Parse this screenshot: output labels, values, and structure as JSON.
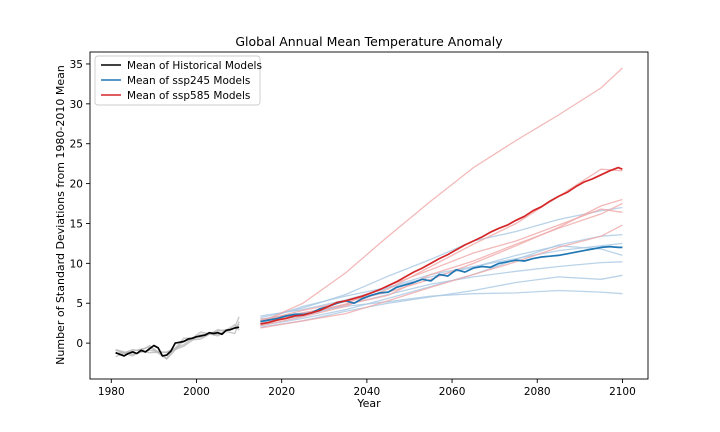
{
  "chart_data": {
    "type": "line",
    "title": "Global Annual Mean Temperature Anomaly",
    "xlabel": "Year",
    "ylabel": "Number of Standard Deviations from 1980-2010 Mean",
    "xlim": [
      1975,
      2106
    ],
    "ylim": [
      -4.5,
      36.5
    ],
    "xticks": [
      1980,
      2000,
      2020,
      2040,
      2060,
      2080,
      2100
    ],
    "yticks": [
      0,
      5,
      10,
      15,
      20,
      25,
      30,
      35
    ],
    "grid": false,
    "legend_position": "top-left",
    "colors": {
      "historical": "#000000",
      "historical_members": "#b8b8b8",
      "ssp245": "#1f77b4",
      "ssp245_members": "#a9c8e3",
      "ssp585": "#d62728",
      "ssp585_members": "#f0a8a8"
    },
    "series": [
      {
        "name": "Mean of Historical Models",
        "color": "#000000",
        "x": [
          1981,
          1982,
          1983,
          1984,
          1985,
          1986,
          1987,
          1988,
          1989,
          1990,
          1991,
          1992,
          1993,
          1994,
          1995,
          1996,
          1997,
          1998,
          1999,
          2000,
          2001,
          2002,
          2003,
          2004,
          2005,
          2006,
          2007,
          2008,
          2009,
          2010
        ],
        "y": [
          -1.2,
          -1.4,
          -1.6,
          -1.3,
          -1.1,
          -1.3,
          -0.9,
          -1.1,
          -0.7,
          -0.3,
          -0.6,
          -1.6,
          -1.5,
          -1.0,
          0.0,
          0.1,
          0.2,
          0.5,
          0.6,
          0.8,
          0.9,
          1.0,
          1.3,
          1.2,
          1.3,
          1.1,
          1.6,
          1.7,
          1.9,
          2.0
        ]
      },
      {
        "name": "Mean of ssp245 Models",
        "color": "#1f77b4",
        "x": [
          2015,
          2017,
          2019,
          2021,
          2023,
          2025,
          2027,
          2029,
          2031,
          2033,
          2035,
          2037,
          2039,
          2041,
          2043,
          2045,
          2047,
          2049,
          2051,
          2053,
          2055,
          2057,
          2059,
          2061,
          2063,
          2065,
          2067,
          2069,
          2071,
          2073,
          2075,
          2077,
          2079,
          2081,
          2083,
          2085,
          2087,
          2089,
          2091,
          2093,
          2095,
          2097,
          2099,
          2100
        ],
        "y": [
          2.7,
          2.9,
          3.1,
          3.4,
          3.6,
          3.6,
          3.8,
          4.3,
          4.6,
          5.0,
          5.3,
          5.0,
          5.6,
          6.0,
          6.3,
          6.4,
          7.0,
          7.3,
          7.6,
          8.0,
          7.8,
          8.6,
          8.4,
          9.2,
          8.9,
          9.4,
          9.6,
          9.5,
          10.0,
          10.2,
          10.4,
          10.3,
          10.6,
          10.8,
          10.9,
          11.0,
          11.2,
          11.4,
          11.6,
          11.8,
          12.0,
          12.1,
          12.0,
          12.0
        ]
      },
      {
        "name": "Mean of ssp585 Models",
        "color": "#d62728",
        "x": [
          2015,
          2017,
          2019,
          2021,
          2023,
          2025,
          2027,
          2029,
          2031,
          2033,
          2035,
          2037,
          2039,
          2041,
          2043,
          2045,
          2047,
          2049,
          2051,
          2053,
          2055,
          2057,
          2059,
          2061,
          2063,
          2065,
          2067,
          2069,
          2071,
          2073,
          2075,
          2077,
          2079,
          2081,
          2083,
          2085,
          2087,
          2089,
          2091,
          2093,
          2095,
          2097,
          2099,
          2100
        ],
        "y": [
          2.4,
          2.6,
          2.9,
          3.1,
          3.4,
          3.5,
          3.8,
          4.1,
          4.6,
          5.1,
          5.3,
          5.6,
          5.9,
          6.3,
          6.7,
          7.2,
          7.7,
          8.3,
          8.9,
          9.4,
          10.0,
          10.6,
          11.1,
          11.7,
          12.3,
          12.8,
          13.3,
          13.9,
          14.4,
          14.8,
          15.4,
          15.9,
          16.6,
          17.1,
          17.8,
          18.4,
          18.9,
          19.6,
          20.2,
          20.6,
          21.1,
          21.6,
          22.0,
          21.8
        ]
      }
    ],
    "ensemble_members": [
      {
        "scenario": "historical",
        "color": "#b8b8b8",
        "x": [
          1981,
          1985,
          1989,
          1993,
          1997,
          2001,
          2005,
          2009,
          2010
        ],
        "y": [
          -0.9,
          -1.6,
          -0.3,
          -1.9,
          0.6,
          0.7,
          1.5,
          1.9,
          2.4
        ]
      },
      {
        "scenario": "historical",
        "color": "#b8b8b8",
        "x": [
          1981,
          1985,
          1989,
          1993,
          1997,
          2001,
          2005,
          2009,
          2010
        ],
        "y": [
          -1.7,
          -0.8,
          -1.2,
          -1.1,
          -0.2,
          1.4,
          0.9,
          2.3,
          1.6
        ]
      },
      {
        "scenario": "historical",
        "color": "#b8b8b8",
        "x": [
          1981,
          1985,
          1989,
          1993,
          1997,
          2001,
          2005,
          2009,
          2010
        ],
        "y": [
          -1.3,
          -1.0,
          -0.5,
          -2.0,
          0.3,
          0.5,
          1.7,
          1.2,
          2.7
        ]
      },
      {
        "scenario": "historical",
        "color": "#b8b8b8",
        "x": [
          1981,
          1985,
          1989,
          1993,
          1997,
          2001,
          2005,
          2009,
          2010
        ],
        "y": [
          -0.8,
          -1.4,
          -0.9,
          -1.2,
          -0.4,
          1.1,
          1.1,
          2.0,
          3.3
        ]
      },
      {
        "scenario": "ssp245",
        "color": "#a9c8e3",
        "x": [
          2015,
          2025,
          2035,
          2045,
          2055,
          2065,
          2075,
          2085,
          2095,
          2100
        ],
        "y": [
          2.0,
          2.8,
          4.0,
          5.0,
          5.8,
          6.6,
          7.6,
          8.3,
          8.0,
          8.5
        ]
      },
      {
        "scenario": "ssp245",
        "color": "#a9c8e3",
        "x": [
          2015,
          2025,
          2035,
          2045,
          2055,
          2065,
          2075,
          2085,
          2095,
          2100
        ],
        "y": [
          3.0,
          3.8,
          4.6,
          5.2,
          5.9,
          6.2,
          6.3,
          6.6,
          6.4,
          6.2
        ]
      },
      {
        "scenario": "ssp245",
        "color": "#a9c8e3",
        "x": [
          2015,
          2025,
          2035,
          2045,
          2055,
          2065,
          2075,
          2085,
          2095,
          2100
        ],
        "y": [
          2.6,
          3.4,
          4.8,
          6.1,
          7.4,
          8.3,
          9.0,
          9.6,
          10.1,
          10.2
        ]
      },
      {
        "scenario": "ssp245",
        "color": "#a9c8e3",
        "x": [
          2015,
          2025,
          2035,
          2045,
          2055,
          2065,
          2075,
          2085,
          2095,
          2100
        ],
        "y": [
          3.2,
          4.4,
          6.1,
          8.4,
          10.5,
          12.8,
          14.0,
          15.5,
          16.6,
          17.0
        ]
      },
      {
        "scenario": "ssp245",
        "color": "#a9c8e3",
        "x": [
          2015,
          2025,
          2035,
          2045,
          2055,
          2065,
          2075,
          2085,
          2095,
          2100
        ],
        "y": [
          2.8,
          4.6,
          5.9,
          7.0,
          8.6,
          9.6,
          10.6,
          11.6,
          12.2,
          12.5
        ]
      },
      {
        "scenario": "ssp245",
        "color": "#a9c8e3",
        "x": [
          2015,
          2025,
          2035,
          2045,
          2055,
          2065,
          2075,
          2085,
          2095,
          2100
        ],
        "y": [
          2.2,
          3.1,
          4.2,
          5.6,
          7.1,
          8.6,
          10.5,
          12.3,
          13.4,
          13.6
        ]
      },
      {
        "scenario": "ssp245",
        "color": "#a9c8e3",
        "x": [
          2015,
          2025,
          2035,
          2045,
          2055,
          2065,
          2075,
          2085,
          2095,
          2100
        ],
        "y": [
          3.4,
          4.2,
          5.4,
          6.9,
          8.3,
          9.5,
          11.0,
          12.2,
          11.8,
          11.0
        ]
      },
      {
        "scenario": "ssp585",
        "color": "#f0a8a8",
        "x": [
          2015,
          2025,
          2035,
          2045,
          2055,
          2065,
          2075,
          2085,
          2095,
          2100
        ],
        "y": [
          2.6,
          5.0,
          8.8,
          13.4,
          17.8,
          22.0,
          25.4,
          28.6,
          32.0,
          34.5
        ]
      },
      {
        "scenario": "ssp585",
        "color": "#f0a8a8",
        "x": [
          2015,
          2025,
          2035,
          2045,
          2055,
          2065,
          2075,
          2085,
          2095,
          2100
        ],
        "y": [
          2.2,
          3.3,
          4.6,
          6.8,
          9.6,
          12.4,
          15.0,
          18.4,
          21.8,
          21.6
        ]
      },
      {
        "scenario": "ssp585",
        "color": "#f0a8a8",
        "x": [
          2015,
          2025,
          2035,
          2045,
          2055,
          2065,
          2075,
          2085,
          2095,
          2100
        ],
        "y": [
          3.0,
          3.6,
          4.9,
          7.2,
          9.2,
          11.3,
          12.8,
          14.8,
          16.8,
          16.4
        ]
      },
      {
        "scenario": "ssp585",
        "color": "#f0a8a8",
        "x": [
          2015,
          2025,
          2035,
          2045,
          2055,
          2065,
          2075,
          2085,
          2095,
          2100
        ],
        "y": [
          2.4,
          3.8,
          4.8,
          6.0,
          8.6,
          10.3,
          12.4,
          14.4,
          16.2,
          17.5
        ]
      },
      {
        "scenario": "ssp585",
        "color": "#f0a8a8",
        "x": [
          2015,
          2025,
          2035,
          2045,
          2055,
          2065,
          2075,
          2085,
          2095,
          2100
        ],
        "y": [
          1.9,
          2.8,
          3.7,
          5.3,
          7.0,
          8.6,
          10.2,
          12.0,
          13.4,
          14.8
        ]
      },
      {
        "scenario": "ssp585",
        "color": "#f0a8a8",
        "x": [
          2015,
          2025,
          2035,
          2045,
          2055,
          2065,
          2075,
          2085,
          2095,
          2100
        ],
        "y": [
          2.8,
          4.1,
          5.2,
          6.4,
          8.0,
          10.0,
          12.2,
          14.5,
          17.2,
          18.0
        ]
      }
    ]
  }
}
